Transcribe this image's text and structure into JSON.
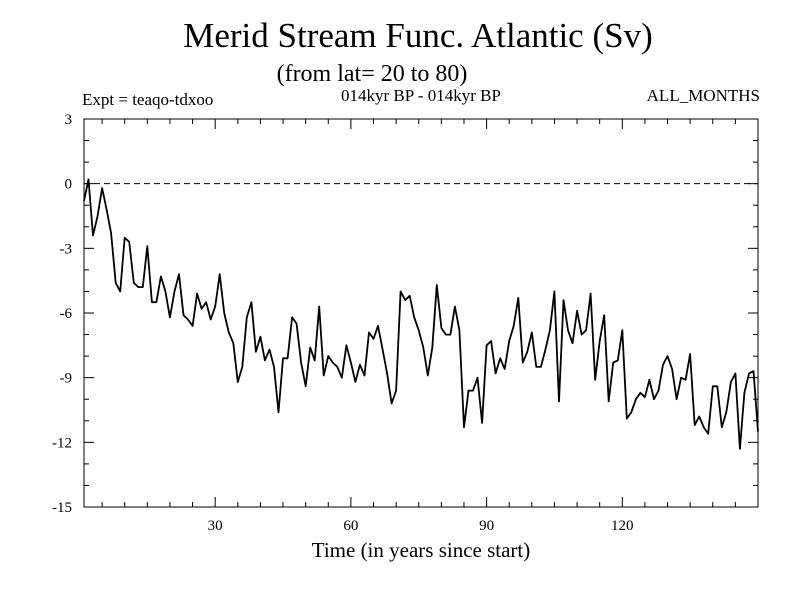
{
  "chart_data": {
    "type": "line",
    "title": "Merid Stream Func. Atlantic (Sv)",
    "subtitle": "(from lat= 20 to 80)",
    "annotations": {
      "left": "Expt = teaqo-tdxoo",
      "center": "014kyr BP - 014kyr BP",
      "right": "ALL_MONTHS"
    },
    "xlabel": "Time (in years since start)",
    "ylabel": "",
    "xlim": [
      1,
      150
    ],
    "ylim": [
      -15,
      3
    ],
    "xticks": [
      30,
      60,
      90,
      120
    ],
    "yticks": [
      3,
      0,
      -3,
      -6,
      -9,
      -12,
      -15
    ],
    "reference_line": {
      "y": 0,
      "style": "dashed"
    },
    "series": [
      {
        "name": "Merid Stream Func. Atlantic",
        "x": [
          1,
          2,
          3,
          4,
          5,
          6,
          7,
          8,
          9,
          10,
          11,
          12,
          13,
          14,
          15,
          16,
          17,
          18,
          19,
          20,
          21,
          22,
          23,
          24,
          25,
          26,
          27,
          28,
          29,
          30,
          31,
          32,
          33,
          34,
          35,
          36,
          37,
          38,
          39,
          40,
          41,
          42,
          43,
          44,
          45,
          46,
          47,
          48,
          49,
          50,
          51,
          52,
          53,
          54,
          55,
          56,
          57,
          58,
          59,
          60,
          61,
          62,
          63,
          64,
          65,
          66,
          67,
          68,
          69,
          70,
          71,
          72,
          73,
          74,
          75,
          76,
          77,
          78,
          79,
          80,
          81,
          82,
          83,
          84,
          85,
          86,
          87,
          88,
          89,
          90,
          91,
          92,
          93,
          94,
          95,
          96,
          97,
          98,
          99,
          100,
          101,
          102,
          103,
          104,
          105,
          106,
          107,
          108,
          109,
          110,
          111,
          112,
          113,
          114,
          115,
          116,
          117,
          118,
          119,
          120,
          121,
          122,
          123,
          124,
          125,
          126,
          127,
          128,
          129,
          130,
          131,
          132,
          133,
          134,
          135,
          136,
          137,
          138,
          139,
          140,
          141,
          142,
          143,
          144,
          145,
          146,
          147,
          148,
          149,
          150
        ],
        "values": [
          -0.8,
          0.2,
          -2.4,
          -1.5,
          -0.2,
          -1.2,
          -2.3,
          -4.6,
          -5.0,
          -2.5,
          -2.7,
          -4.6,
          -4.8,
          -4.8,
          -2.9,
          -5.5,
          -5.5,
          -4.3,
          -5.0,
          -6.2,
          -5.0,
          -4.2,
          -6.1,
          -6.3,
          -6.6,
          -5.1,
          -5.8,
          -5.5,
          -6.3,
          -5.7,
          -4.2,
          -6.0,
          -6.9,
          -7.4,
          -9.2,
          -8.5,
          -6.2,
          -5.5,
          -7.8,
          -7.1,
          -8.2,
          -7.7,
          -8.5,
          -10.6,
          -8.1,
          -8.1,
          -6.2,
          -6.5,
          -8.3,
          -9.4,
          -7.6,
          -8.2,
          -5.7,
          -8.9,
          -8.0,
          -8.3,
          -8.5,
          -9.0,
          -7.5,
          -8.3,
          -9.2,
          -8.4,
          -8.9,
          -6.9,
          -7.2,
          -6.6,
          -7.7,
          -8.8,
          -10.2,
          -9.6,
          -5.0,
          -5.4,
          -5.2,
          -6.2,
          -6.8,
          -7.6,
          -8.9,
          -7.6,
          -4.7,
          -6.7,
          -7.0,
          -7.0,
          -5.7,
          -6.8,
          -11.3,
          -9.6,
          -9.6,
          -9.0,
          -11.1,
          -7.5,
          -7.3,
          -8.8,
          -8.1,
          -8.6,
          -7.3,
          -6.6,
          -5.3,
          -8.3,
          -7.8,
          -6.9,
          -8.5,
          -8.5,
          -7.7,
          -6.8,
          -5.0,
          -10.1,
          -5.4,
          -6.8,
          -7.4,
          -5.9,
          -7.0,
          -6.8,
          -5.1,
          -9.1,
          -7.3,
          -6.1,
          -10.1,
          -8.3,
          -8.2,
          -6.8,
          -10.9,
          -10.6,
          -10.0,
          -9.7,
          -9.9,
          -9.1,
          -10.0,
          -9.6,
          -8.4,
          -8.0,
          -8.6,
          -10.0,
          -9.0,
          -9.1,
          -7.9,
          -11.2,
          -10.8,
          -11.3,
          -11.6,
          -9.4,
          -9.4,
          -11.3,
          -10.6,
          -9.2,
          -8.8,
          -12.3,
          -9.7,
          -8.8,
          -8.7,
          -11.5
        ]
      }
    ]
  }
}
